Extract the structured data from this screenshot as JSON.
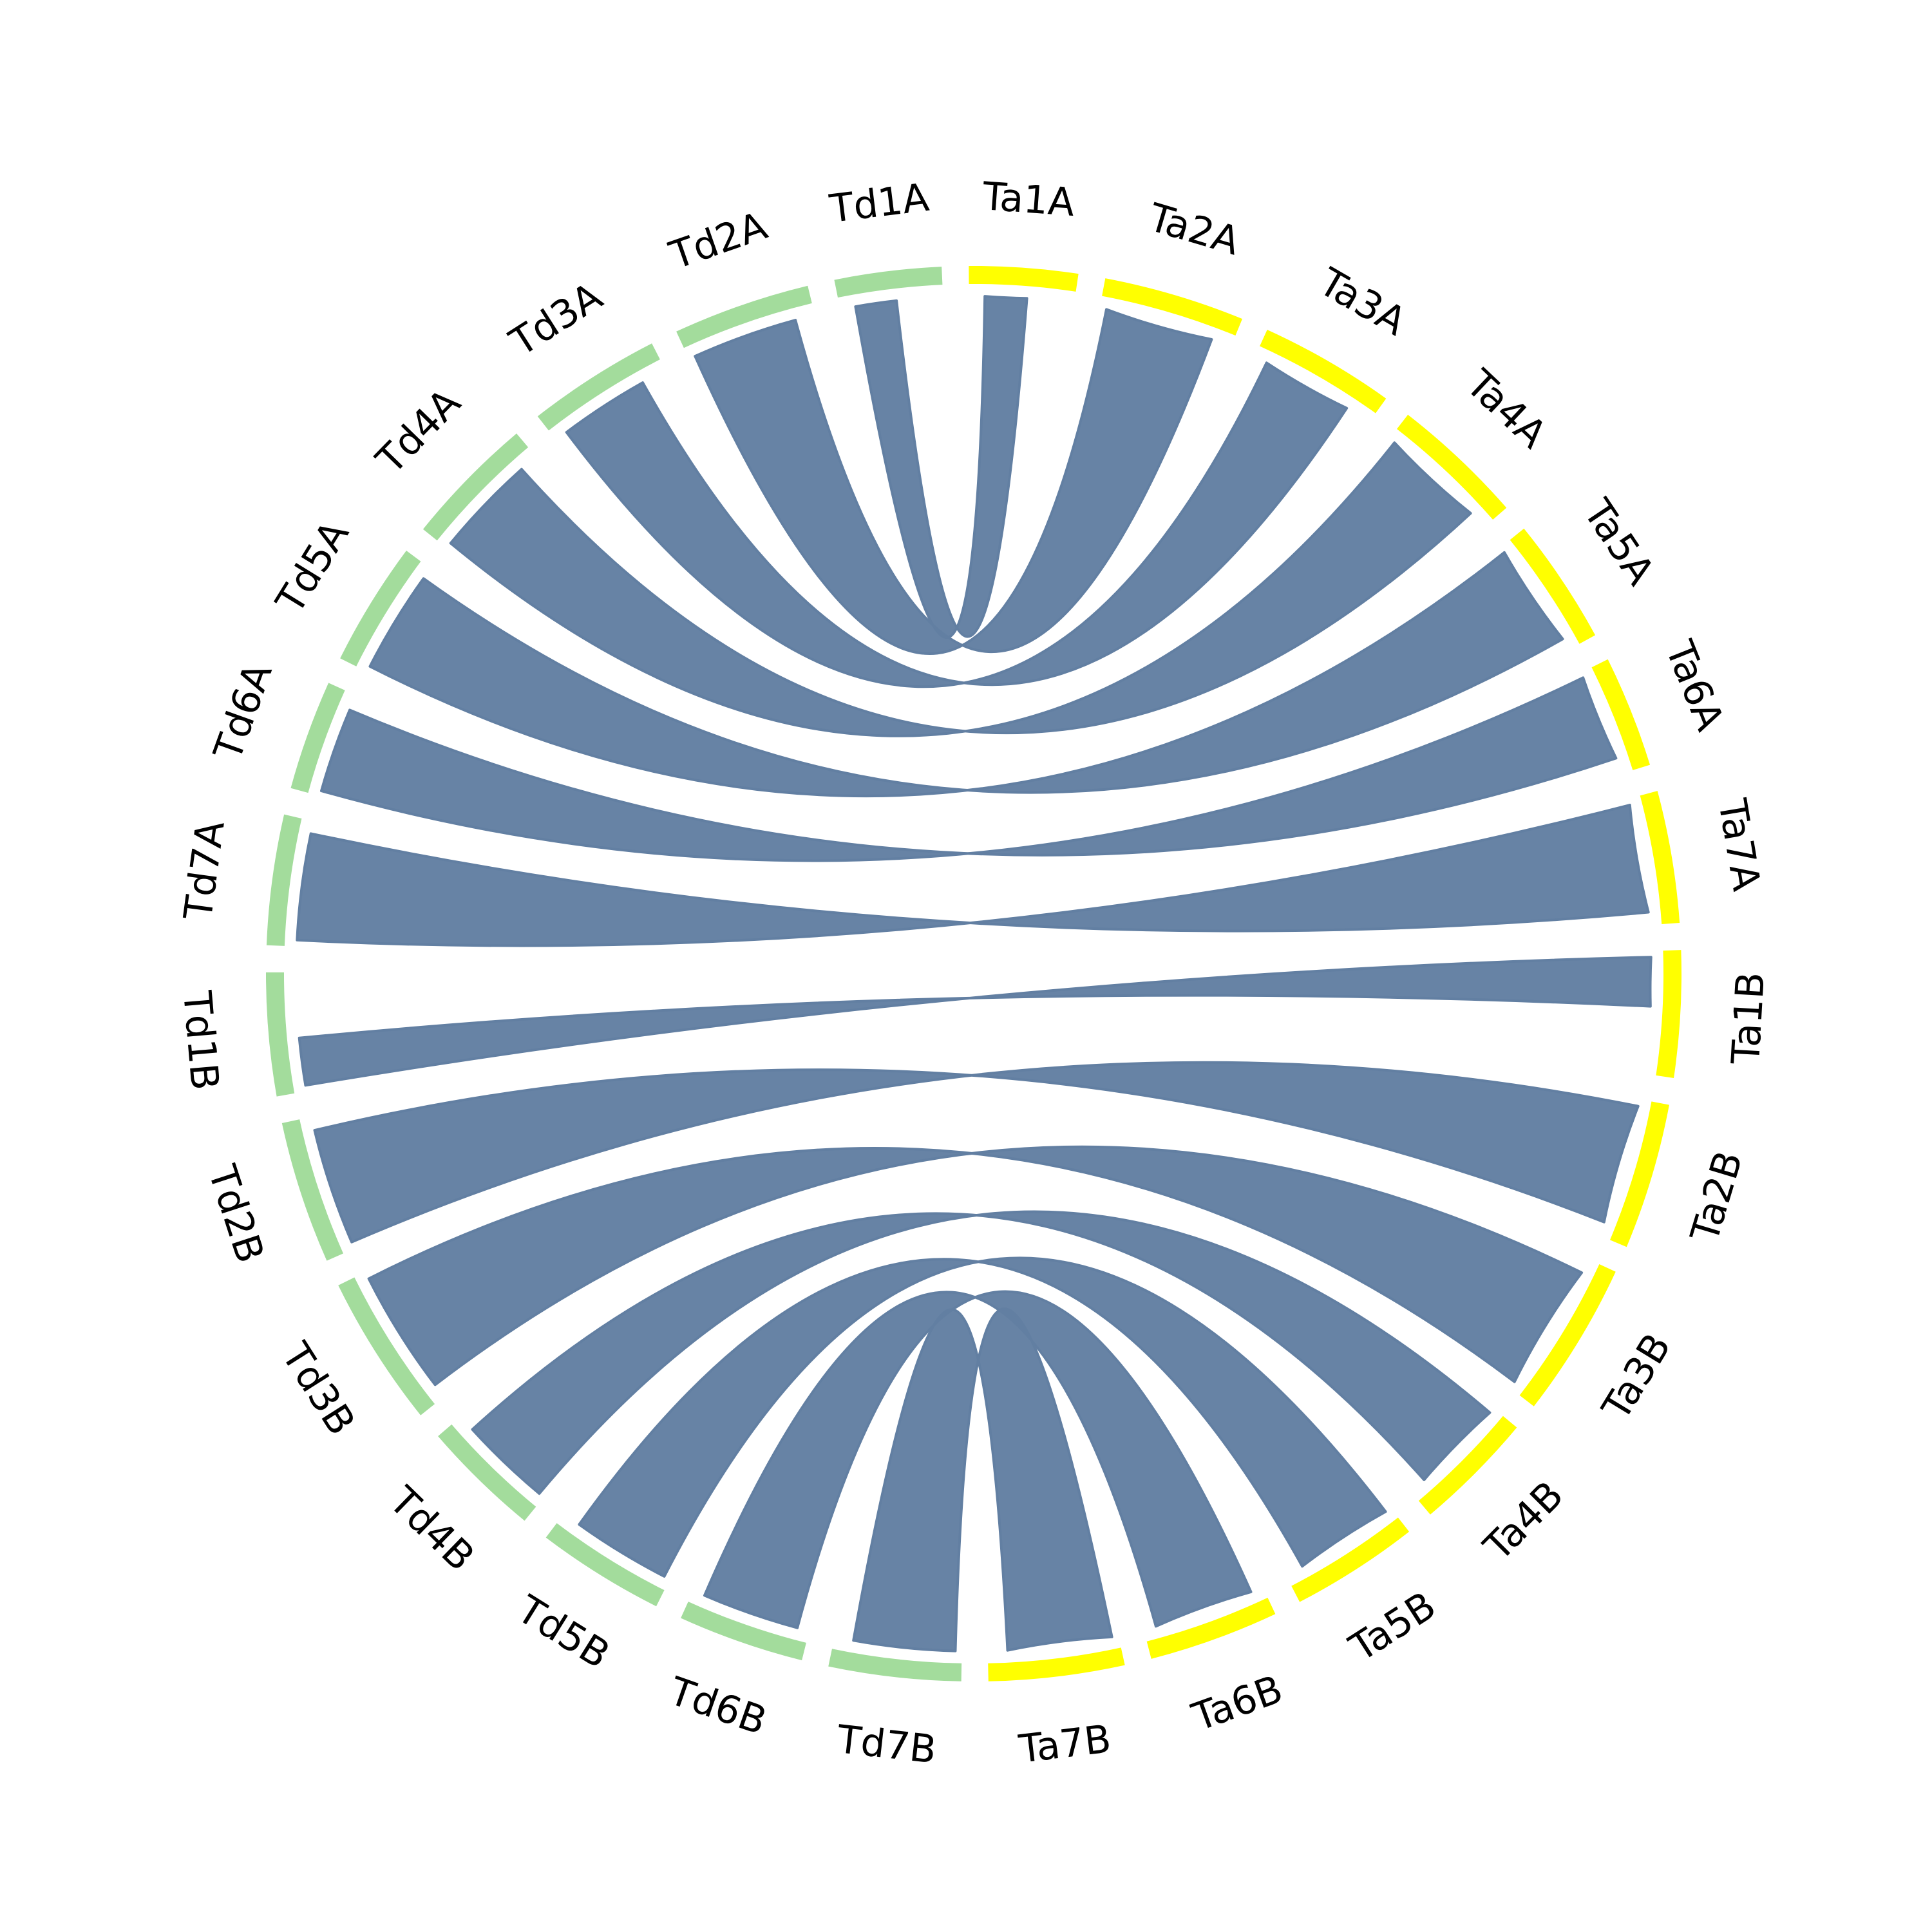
{
  "colors": {
    "background": "#ffffff",
    "genome_a": "#a3dc9c",
    "genome_b": "#ffff00",
    "link": "#627fa2",
    "label": "#000000"
  },
  "chart_data": {
    "type": "chord",
    "genomes": [
      {
        "prefix": "Td",
        "color": "#a3dc9c"
      },
      {
        "prefix": "Ta",
        "color": "#ffff00"
      }
    ],
    "chromosomes": [
      {
        "name": "Ta1A",
        "genome": "Ta",
        "size": 6.0
      },
      {
        "name": "Ta2A",
        "genome": "Ta",
        "size": 7.8
      },
      {
        "name": "Ta3A",
        "genome": "Ta",
        "size": 7.5
      },
      {
        "name": "Ta4A",
        "genome": "Ta",
        "size": 7.4
      },
      {
        "name": "Ta5A",
        "genome": "Ta",
        "size": 7.0
      },
      {
        "name": "Ta6A",
        "genome": "Ta",
        "size": 6.2
      },
      {
        "name": "Ta7A",
        "genome": "Ta",
        "size": 7.3
      },
      {
        "name": "Ta1B",
        "genome": "Ta",
        "size": 7.0
      },
      {
        "name": "Ta2B",
        "genome": "Ta",
        "size": 8.1
      },
      {
        "name": "Ta3B",
        "genome": "Ta",
        "size": 8.6
      },
      {
        "name": "Ta4B",
        "genome": "Ta",
        "size": 6.7
      },
      {
        "name": "Ta5B",
        "genome": "Ta",
        "size": 7.1
      },
      {
        "name": "Ta6B",
        "genome": "Ta",
        "size": 7.2
      },
      {
        "name": "Ta7B",
        "genome": "Ta",
        "size": 7.5
      },
      {
        "name": "Td7B",
        "genome": "Td",
        "size": 7.3
      },
      {
        "name": "Td6B",
        "genome": "Td",
        "size": 7.0
      },
      {
        "name": "Td5B",
        "genome": "Td",
        "size": 7.1
      },
      {
        "name": "Td4B",
        "genome": "Td",
        "size": 6.6
      },
      {
        "name": "Td3B",
        "genome": "Td",
        "size": 8.4
      },
      {
        "name": "Td2B",
        "genome": "Td",
        "size": 7.9
      },
      {
        "name": "Td1B",
        "genome": "Td",
        "size": 6.8
      },
      {
        "name": "Td7A",
        "genome": "Td",
        "size": 7.2
      },
      {
        "name": "Td6A",
        "genome": "Td",
        "size": 6.1
      },
      {
        "name": "Td5A",
        "genome": "Td",
        "size": 6.9
      },
      {
        "name": "Td4A",
        "genome": "Td",
        "size": 7.3
      },
      {
        "name": "Td3A",
        "genome": "Td",
        "size": 7.4
      },
      {
        "name": "Td2A",
        "genome": "Td",
        "size": 7.6
      },
      {
        "name": "Td1A",
        "genome": "Td",
        "size": 5.9
      }
    ],
    "links": [
      {
        "from": "Td1A",
        "to": "Ta1A",
        "from_range": [
          0.15,
          0.55
        ],
        "to_range": [
          0.15,
          0.55
        ]
      },
      {
        "from": "Td2A",
        "to": "Ta2A",
        "from_range": [
          0.05,
          0.85
        ],
        "to_range": [
          0.05,
          0.85
        ]
      },
      {
        "from": "Td3A",
        "to": "Ta3A",
        "from_range": [
          0.1,
          0.8
        ],
        "to_range": [
          0.1,
          0.8
        ]
      },
      {
        "from": "Td4A",
        "to": "Ta4A",
        "from_range": [
          0.05,
          0.85
        ],
        "to_range": [
          0.05,
          0.85
        ]
      },
      {
        "from": "Td5A",
        "to": "Ta5A",
        "from_range": [
          0.05,
          0.9
        ],
        "to_range": [
          0.05,
          0.9
        ]
      },
      {
        "from": "Td6A",
        "to": "Ta6A",
        "from_range": [
          0.05,
          0.85
        ],
        "to_range": [
          0.05,
          0.85
        ]
      },
      {
        "from": "Td7A",
        "to": "Ta7A",
        "from_range": [
          0.05,
          0.9
        ],
        "to_range": [
          0.05,
          0.9
        ]
      },
      {
        "from": "Td1B",
        "to": "Ta1B",
        "from_range": [
          0.05,
          0.45
        ],
        "to_range": [
          0.05,
          0.45
        ]
      },
      {
        "from": "Td2B",
        "to": "Ta2B",
        "from_range": [
          0.05,
          0.9
        ],
        "to_range": [
          0.05,
          0.9
        ]
      },
      {
        "from": "Td3B",
        "to": "Ta3B",
        "from_range": [
          0.1,
          0.95
        ],
        "to_range": [
          0.1,
          0.95
        ]
      },
      {
        "from": "Td4B",
        "to": "Ta4B",
        "from_range": [
          0.05,
          0.85
        ],
        "to_range": [
          0.05,
          0.85
        ]
      },
      {
        "from": "Td5B",
        "to": "Ta5B",
        "from_range": [
          0.05,
          0.85
        ],
        "to_range": [
          0.05,
          0.85
        ]
      },
      {
        "from": "Td6B",
        "to": "Ta6B",
        "from_range": [
          0.1,
          0.9
        ],
        "to_range": [
          0.1,
          0.9
        ]
      },
      {
        "from": "Td7B",
        "to": "Ta7B",
        "from_range": [
          0.05,
          0.85
        ],
        "to_range": [
          0.05,
          0.85
        ]
      }
    ]
  }
}
